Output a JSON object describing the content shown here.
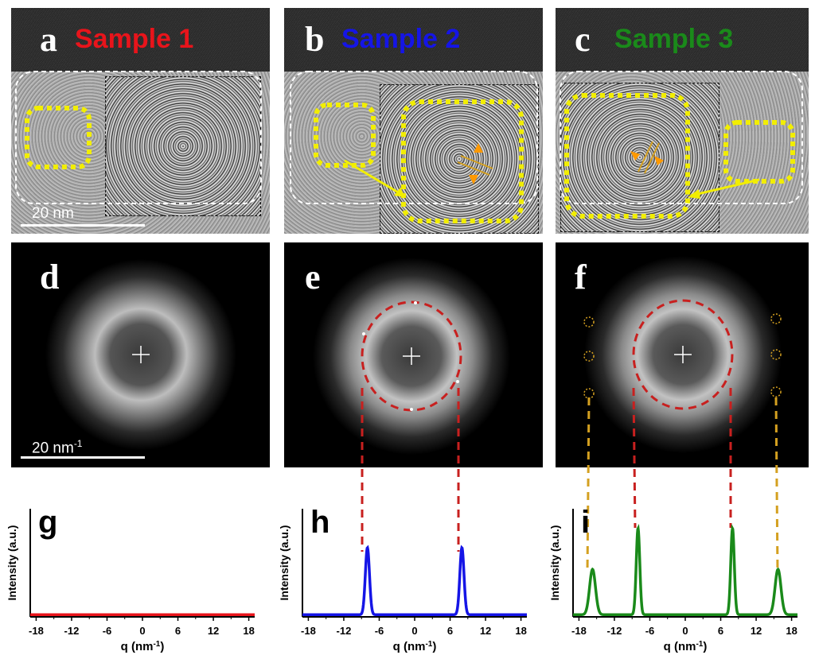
{
  "panels": {
    "a": {
      "letter": "a",
      "sample": "Sample 1",
      "color": "#e8141b"
    },
    "b": {
      "letter": "b",
      "sample": "Sample 2",
      "color": "#1515e6"
    },
    "c": {
      "letter": "c",
      "sample": "Sample 3",
      "color": "#1a8a1a"
    },
    "d": {
      "letter": "d"
    },
    "e": {
      "letter": "e"
    },
    "f": {
      "letter": "f"
    }
  },
  "scale_real": {
    "label": "20 nm"
  },
  "scale_recip": {
    "label_main": "20 nm",
    "label_sup": "-1"
  },
  "colors": {
    "highlight": "#f2ee00",
    "dash_red": "#c8201f",
    "dash_gold": "#d4a020",
    "orange": "#ff9900"
  },
  "chart_data": [
    {
      "type": "line",
      "letter": "g",
      "color": "#e8141b",
      "xlabel": "q (nm",
      "xlabel_sup": "-1",
      "xlabel_end": ")",
      "ylabel": "Intensity (a.u.)",
      "xlim": [
        -19,
        19
      ],
      "ylim": [
        0,
        1
      ],
      "xticks": [
        -18,
        -12,
        -6,
        0,
        6,
        12,
        18
      ],
      "peaks": []
    },
    {
      "type": "line",
      "letter": "h",
      "color": "#1515e6",
      "xlabel": "q (nm",
      "xlabel_sup": "-1",
      "xlabel_end": ")",
      "ylabel": "Intensity (a.u.)",
      "xlim": [
        -19,
        19
      ],
      "ylim": [
        0,
        1
      ],
      "xticks": [
        -18,
        -12,
        -6,
        0,
        6,
        12,
        18
      ],
      "peaks": [
        {
          "x": -8,
          "h": 0.62,
          "w": 0.35
        },
        {
          "x": 8,
          "h": 0.62,
          "w": 0.35
        }
      ]
    },
    {
      "type": "line",
      "letter": "i",
      "color": "#1a8a1a",
      "xlabel": "q (nm",
      "xlabel_sup": "-1",
      "xlabel_end": ")",
      "ylabel": "Intensity (a.u.)",
      "xlim": [
        -19,
        19
      ],
      "ylim": [
        0,
        1
      ],
      "xticks": [
        -18,
        -12,
        -6,
        0,
        6,
        12,
        18
      ],
      "peaks": [
        {
          "x": -15.7,
          "h": 0.42,
          "w": 0.5
        },
        {
          "x": -8,
          "h": 0.8,
          "w": 0.3
        },
        {
          "x": 8,
          "h": 0.8,
          "w": 0.3
        },
        {
          "x": 15.7,
          "h": 0.42,
          "w": 0.5
        }
      ]
    }
  ]
}
